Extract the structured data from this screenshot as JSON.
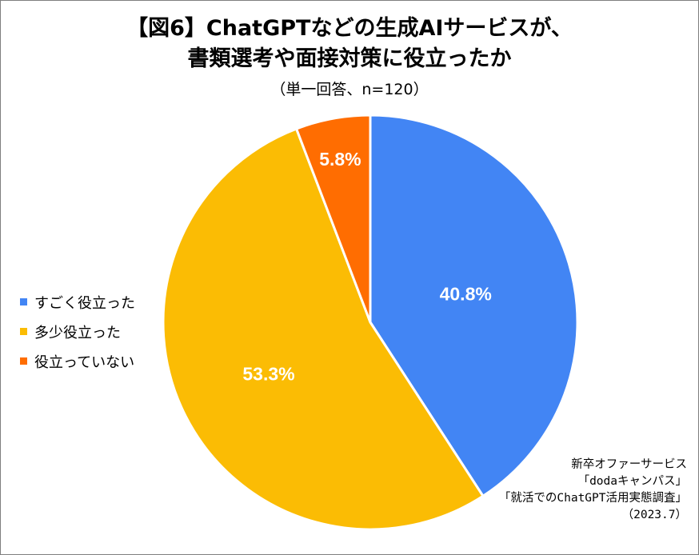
{
  "chart_data": {
    "type": "pie",
    "title_line1": "【図6】ChatGPTなどの生成AIサービスが、",
    "title_line2": "書類選考や面接対策に役立ったか",
    "subtitle": "（単一回答、n=120）",
    "slices": [
      {
        "name": "すごく役立った",
        "value": 40.8,
        "label": "40.8%",
        "color": "#4285f4"
      },
      {
        "name": "多少役立った",
        "value": 53.3,
        "label": "53.3%",
        "color": "#fbbc04"
      },
      {
        "name": "役立っていない",
        "value": 5.8,
        "label": "5.8%",
        "color": "#ff6d01"
      }
    ],
    "legend_position": "left",
    "source_lines": [
      "新卒オファーサービス",
      "「dodaキャンパス」",
      "「就活でのChatGPT活用実態調査」",
      "（2023.7）"
    ]
  }
}
